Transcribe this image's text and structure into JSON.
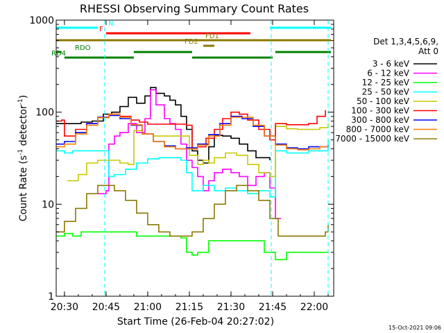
{
  "chart_data": {
    "type": "line",
    "title": "RHESSI Observing Summary Count Rates",
    "xlabel": "Start Time (26-Feb-04 20:27:02)",
    "ylabel": "Count Rate (s⁻¹ detector⁻¹)",
    "ylabel_main": "Count Rate (s",
    "ylabel_sup1": "-1",
    "ylabel_mid": " detector",
    "ylabel_sup2": "-1",
    "ylabel_end": ")",
    "y_scale": "log",
    "ylim": [
      1,
      1000
    ],
    "xlim": [
      "20:27:02",
      "22:07:00"
    ],
    "x_ticks": [
      "20:30",
      "20:45",
      "21:00",
      "21:15",
      "21:30",
      "21:45",
      "22:00"
    ],
    "y_ticks": [
      "1",
      "10",
      "100",
      "1000"
    ],
    "legend_title_1": "Det 1,3,4,5,6,9,",
    "legend_title_2": "Att 0",
    "legend_position": "right",
    "timestamp": "15-Oct-2021 09:06",
    "series": [
      {
        "name": "3 - 6 keV",
        "color": "#000000",
        "points": [
          [
            "20:27",
            75
          ],
          [
            "20:30",
            75
          ],
          [
            "20:33",
            75
          ],
          [
            "20:36",
            78
          ],
          [
            "20:40",
            80
          ],
          [
            "20:44",
            95
          ],
          [
            "20:47",
            100
          ],
          [
            "20:50",
            115
          ],
          [
            "20:53",
            145
          ],
          [
            "20:56",
            125
          ],
          [
            "20:59",
            150
          ],
          [
            "21:01",
            185
          ],
          [
            "21:03",
            160
          ],
          [
            "21:06",
            150
          ],
          [
            "21:08",
            135
          ],
          [
            "21:10",
            120
          ],
          [
            "21:12",
            90
          ],
          [
            "21:14",
            65
          ],
          [
            "21:16",
            38
          ],
          [
            "21:18",
            30
          ],
          [
            "21:20",
            28
          ],
          [
            "21:22",
            42
          ],
          [
            "21:24",
            56
          ],
          [
            "21:27",
            55
          ],
          [
            "21:30",
            52
          ],
          [
            "21:33",
            45
          ],
          [
            "21:36",
            38
          ],
          [
            "21:39",
            32
          ],
          [
            "21:42",
            32
          ],
          [
            "21:44",
            30
          ]
        ]
      },
      {
        "name": "6 - 12 keV",
        "color": "#ff00ff",
        "points": [
          [
            "20:42",
            13
          ],
          [
            "20:45",
            14
          ],
          [
            "20:46",
            45
          ],
          [
            "20:48",
            55
          ],
          [
            "20:50",
            60
          ],
          [
            "20:53",
            75
          ],
          [
            "20:56",
            60
          ],
          [
            "20:59",
            85
          ],
          [
            "21:01",
            175
          ],
          [
            "21:03",
            120
          ],
          [
            "21:06",
            85
          ],
          [
            "21:08",
            75
          ],
          [
            "21:10",
            65
          ],
          [
            "21:12",
            45
          ],
          [
            "21:14",
            30
          ],
          [
            "21:16",
            25
          ],
          [
            "21:18",
            20
          ],
          [
            "21:20",
            14
          ],
          [
            "21:22",
            18
          ],
          [
            "21:24",
            22
          ],
          [
            "21:27",
            24
          ],
          [
            "21:30",
            22
          ],
          [
            "21:33",
            20
          ],
          [
            "21:36",
            16
          ],
          [
            "21:39",
            20
          ],
          [
            "21:42",
            22
          ],
          [
            "21:44",
            15
          ],
          [
            "21:46",
            7
          ],
          [
            "21:48",
            7
          ]
        ]
      },
      {
        "name": "12 - 25 keV",
        "color": "#00ff00",
        "points": [
          [
            "20:27",
            4.5
          ],
          [
            "20:30",
            4.8
          ],
          [
            "20:33",
            4.5
          ],
          [
            "20:36",
            5
          ],
          [
            "20:40",
            5
          ],
          [
            "20:44",
            5
          ],
          [
            "20:48",
            5
          ],
          [
            "20:52",
            5
          ],
          [
            "20:56",
            4.5
          ],
          [
            "21:00",
            4.5
          ],
          [
            "21:04",
            4.5
          ],
          [
            "21:08",
            4.5
          ],
          [
            "21:12",
            4.3
          ],
          [
            "21:14",
            3
          ],
          [
            "21:16",
            2.8
          ],
          [
            "21:18",
            3
          ],
          [
            "21:22",
            4
          ],
          [
            "21:26",
            4
          ],
          [
            "21:30",
            4
          ],
          [
            "21:34",
            4
          ],
          [
            "21:38",
            4
          ],
          [
            "21:42",
            3
          ],
          [
            "21:44",
            3
          ],
          [
            "21:46",
            2.5
          ],
          [
            "21:50",
            3
          ],
          [
            "21:54",
            3
          ],
          [
            "21:58",
            3
          ],
          [
            "22:02",
            3
          ],
          [
            "22:05",
            3
          ]
        ]
      },
      {
        "name": "25 - 50 keV",
        "color": "#00ffff",
        "points": [
          [
            "20:27",
            38
          ],
          [
            "20:30",
            36
          ],
          [
            "20:33",
            38
          ],
          [
            "20:36",
            38
          ],
          [
            "20:40",
            38
          ],
          [
            "20:44",
            38
          ],
          [
            "20:46",
            20
          ],
          [
            "20:48",
            21
          ],
          [
            "20:52",
            24
          ],
          [
            "20:56",
            28
          ],
          [
            "21:00",
            31
          ],
          [
            "21:04",
            32
          ],
          [
            "21:08",
            32
          ],
          [
            "21:12",
            30
          ],
          [
            "21:14",
            22
          ],
          [
            "21:16",
            14
          ],
          [
            "21:18",
            14
          ],
          [
            "21:20",
            16
          ],
          [
            "21:24",
            14
          ],
          [
            "21:28",
            15
          ],
          [
            "21:32",
            14
          ],
          [
            "21:36",
            13
          ],
          [
            "21:40",
            14
          ],
          [
            "21:44",
            12
          ],
          [
            "21:46",
            38
          ],
          [
            "21:50",
            36
          ],
          [
            "21:54",
            36
          ],
          [
            "21:58",
            38
          ],
          [
            "22:02",
            38
          ],
          [
            "22:05",
            50
          ]
        ]
      },
      {
        "name": "50 - 100 keV",
        "color": "#c8c800",
        "points": [
          [
            "20:31",
            18
          ],
          [
            "20:35",
            21
          ],
          [
            "20:38",
            28
          ],
          [
            "20:42",
            30
          ],
          [
            "20:46",
            30
          ],
          [
            "20:50",
            28
          ],
          [
            "20:53",
            27
          ],
          [
            "20:55",
            63
          ],
          [
            "20:58",
            58
          ],
          [
            "21:02",
            55
          ],
          [
            "21:06",
            55
          ],
          [
            "21:10",
            55
          ],
          [
            "21:13",
            55
          ],
          [
            "21:15",
            34
          ],
          [
            "21:18",
            27
          ],
          [
            "21:20",
            30
          ],
          [
            "21:22",
            28
          ],
          [
            "21:24",
            32
          ],
          [
            "21:28",
            36
          ],
          [
            "21:32",
            34
          ],
          [
            "21:36",
            27
          ],
          [
            "21:40",
            22
          ],
          [
            "21:44",
            20
          ],
          [
            "21:46",
            70
          ],
          [
            "21:50",
            66
          ],
          [
            "21:54",
            65
          ],
          [
            "21:58",
            65
          ],
          [
            "22:02",
            68
          ],
          [
            "22:05",
            75
          ]
        ]
      },
      {
        "name": "100 - 300 keV",
        "color": "#ff0000",
        "points": [
          [
            "20:27",
            80
          ],
          [
            "20:29",
            82
          ],
          [
            "20:30",
            55
          ],
          [
            "20:34",
            65
          ],
          [
            "20:38",
            75
          ],
          [
            "20:42",
            88
          ],
          [
            "20:46",
            95
          ],
          [
            "20:50",
            90
          ],
          [
            "20:54",
            82
          ],
          [
            "20:57",
            78
          ],
          [
            "21:00",
            74
          ],
          [
            "21:04",
            74
          ],
          [
            "21:08",
            74
          ],
          [
            "21:12",
            74
          ],
          [
            "21:14",
            72
          ],
          [
            "21:16",
            40
          ],
          [
            "21:18",
            42
          ],
          [
            "21:21",
            52
          ],
          [
            "21:24",
            65
          ],
          [
            "21:27",
            85
          ],
          [
            "21:30",
            100
          ],
          [
            "21:33",
            95
          ],
          [
            "21:36",
            82
          ],
          [
            "21:40",
            65
          ],
          [
            "21:44",
            50
          ],
          [
            "21:46",
            75
          ],
          [
            "21:50",
            73
          ],
          [
            "21:54",
            73
          ],
          [
            "21:58",
            75
          ],
          [
            "22:01",
            90
          ],
          [
            "22:04",
            105
          ]
        ]
      },
      {
        "name": "300 - 800 keV",
        "color": "#0000ff",
        "points": [
          [
            "20:27",
            45
          ],
          [
            "20:30",
            48
          ],
          [
            "20:34",
            60
          ],
          [
            "20:38",
            75
          ],
          [
            "20:42",
            88
          ],
          [
            "20:46",
            92
          ],
          [
            "20:50",
            85
          ],
          [
            "20:54",
            72
          ],
          [
            "20:58",
            58
          ],
          [
            "21:02",
            48
          ],
          [
            "21:06",
            43
          ],
          [
            "21:10",
            40
          ],
          [
            "21:14",
            41
          ],
          [
            "21:18",
            45
          ],
          [
            "21:22",
            57
          ],
          [
            "21:26",
            75
          ],
          [
            "21:30",
            90
          ],
          [
            "21:34",
            85
          ],
          [
            "21:38",
            70
          ],
          [
            "21:42",
            55
          ],
          [
            "21:46",
            45
          ],
          [
            "21:50",
            41
          ],
          [
            "21:54",
            40
          ],
          [
            "21:58",
            42
          ],
          [
            "22:02",
            42
          ],
          [
            "22:05",
            44
          ]
        ]
      },
      {
        "name": "800 - 7000 keV",
        "color": "#ff8000",
        "points": [
          [
            "20:27",
            42
          ],
          [
            "20:30",
            45
          ],
          [
            "20:34",
            58
          ],
          [
            "20:38",
            72
          ],
          [
            "20:42",
            87
          ],
          [
            "20:46",
            95
          ],
          [
            "20:50",
            88
          ],
          [
            "20:54",
            73
          ],
          [
            "20:58",
            58
          ],
          [
            "21:02",
            48
          ],
          [
            "21:06",
            42
          ],
          [
            "21:10",
            40
          ],
          [
            "21:14",
            40
          ],
          [
            "21:18",
            44
          ],
          [
            "21:22",
            55
          ],
          [
            "21:26",
            72
          ],
          [
            "21:30",
            88
          ],
          [
            "21:34",
            88
          ],
          [
            "21:38",
            72
          ],
          [
            "21:42",
            55
          ],
          [
            "21:46",
            44
          ],
          [
            "21:50",
            40
          ],
          [
            "21:54",
            39
          ],
          [
            "21:58",
            40
          ],
          [
            "22:02",
            42
          ],
          [
            "22:05",
            42
          ]
        ]
      },
      {
        "name": "7000 - 15000 keV",
        "color": "#8c7800",
        "points": [
          [
            "20:27",
            5
          ],
          [
            "20:30",
            6.5
          ],
          [
            "20:34",
            9
          ],
          [
            "20:38",
            13
          ],
          [
            "20:42",
            16
          ],
          [
            "20:45",
            16
          ],
          [
            "20:48",
            14
          ],
          [
            "20:52",
            11
          ],
          [
            "20:56",
            8
          ],
          [
            "21:00",
            6
          ],
          [
            "21:04",
            5
          ],
          [
            "21:08",
            4.5
          ],
          [
            "21:12",
            4.5
          ],
          [
            "21:16",
            5
          ],
          [
            "21:20",
            7
          ],
          [
            "21:24",
            10
          ],
          [
            "21:28",
            14
          ],
          [
            "21:32",
            16
          ],
          [
            "21:36",
            14
          ],
          [
            "21:40",
            11
          ],
          [
            "21:44",
            7
          ],
          [
            "21:47",
            4.5
          ],
          [
            "21:52",
            4.5
          ],
          [
            "21:56",
            4.5
          ],
          [
            "22:00",
            4.5
          ],
          [
            "22:04",
            5
          ],
          [
            "22:05",
            6
          ]
        ]
      }
    ],
    "flag_bars": [
      {
        "label": "N",
        "color": "#00ffff",
        "level": 1,
        "segments": [
          [
            "20:27",
            "20:42"
          ],
          [
            "21:44",
            "22:06"
          ]
        ]
      },
      {
        "label": "F",
        "color": "#ff0000",
        "level": 2,
        "segments": [
          [
            "20:45",
            "21:37"
          ]
        ]
      },
      {
        "label": "FD1",
        "color": "#8c7800",
        "level": 3,
        "segments": [
          [
            "20:27",
            "22:06"
          ]
        ]
      },
      {
        "label": "FD2",
        "color": "#8c7800",
        "level": 4,
        "segments": [
          [
            "21:20",
            "21:24"
          ]
        ]
      },
      {
        "label": "RDO",
        "color": "#008000",
        "level": 5,
        "segments": [
          [
            "20:27",
            "20:29"
          ],
          [
            "20:55",
            "21:16"
          ],
          [
            "21:46",
            "22:06"
          ]
        ]
      },
      {
        "label": "RD4",
        "color": "#008000",
        "level": 6,
        "segments": [
          [
            "20:30",
            "20:55"
          ],
          [
            "21:16",
            "21:45"
          ]
        ]
      }
    ],
    "vertical_markers": [
      {
        "time": "20:44:30",
        "color": "#00ffff"
      },
      {
        "time": "21:44:30",
        "color": "#00ffff"
      },
      {
        "time": "22:05:00",
        "color": "#00ffff"
      }
    ]
  }
}
